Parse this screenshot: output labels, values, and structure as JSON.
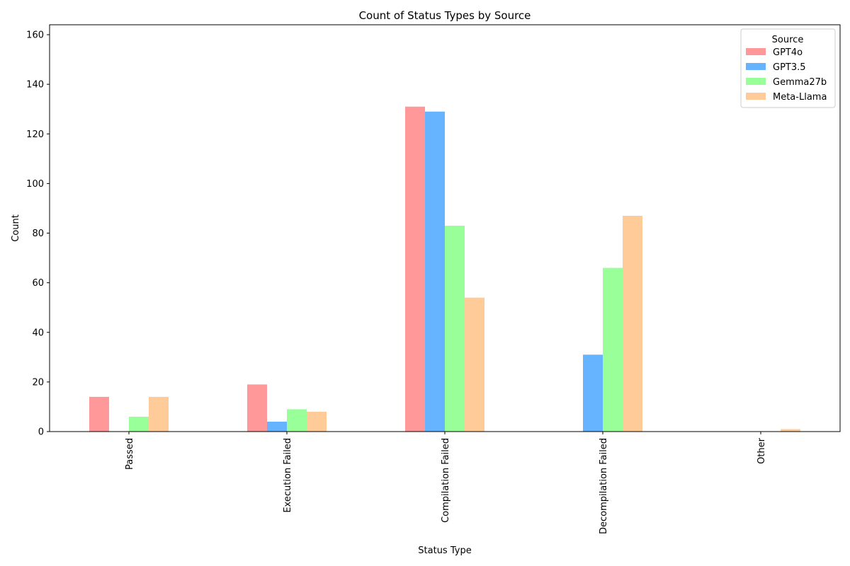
{
  "chart_data": {
    "type": "bar",
    "title": "Count of Status Types by Source",
    "xlabel": "Status Type",
    "ylabel": "Count",
    "categories": [
      "Passed",
      "Execution Failed",
      "Compilation Failed",
      "Decompilation Failed",
      "Other"
    ],
    "series": [
      {
        "name": "GPT4o",
        "color": "#ff9999",
        "values": [
          14,
          19,
          131,
          0,
          0
        ]
      },
      {
        "name": "GPT3.5",
        "color": "#66b3ff",
        "values": [
          0,
          4,
          129,
          31,
          0
        ]
      },
      {
        "name": "Gemma27b",
        "color": "#99ff99",
        "values": [
          6,
          9,
          83,
          66,
          0
        ]
      },
      {
        "name": "Meta-Llama",
        "color": "#ffcc99",
        "values": [
          14,
          8,
          54,
          87,
          1
        ]
      }
    ],
    "ylim": [
      0,
      164
    ],
    "yticks": [
      0,
      20,
      40,
      60,
      80,
      100,
      120,
      140,
      160
    ],
    "grid": false,
    "legend": {
      "title": "Source",
      "position": "top-right"
    }
  }
}
